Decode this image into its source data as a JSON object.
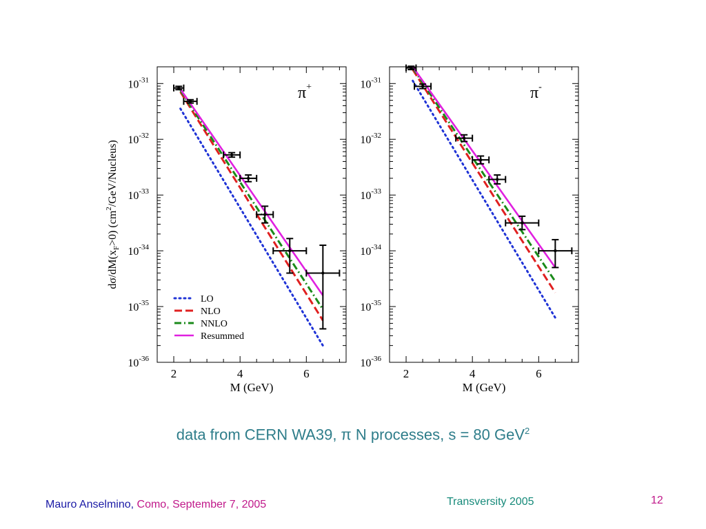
{
  "caption": {
    "text": "data from CERN WA39, π N processes, s = 80 GeV",
    "sup": "2"
  },
  "footer": {
    "author": "Mauro Anselmino,",
    "place": " Como, September 7, 2005",
    "center": "Transversity 2005",
    "page": "12"
  },
  "colors": {
    "LO": "#1f33d6",
    "NLO": "#e02020",
    "NNLO": "#1a8a1a",
    "Resummed": "#e020e0",
    "data": "#000000",
    "caption": "#2e7d8a"
  },
  "chart_data": [
    {
      "type": "line",
      "panel_label": "π",
      "panel_label_sup": "+",
      "ylabel": "dσ/dM(x",
      "ylabel_sub": "F",
      "ylabel_mid": ">0) (cm",
      "ylabel_sup": "2",
      "ylabel_end": "/GeV/Nucleus)",
      "xlabel": "M (GeV)",
      "xlim": [
        1.5,
        7.2
      ],
      "ylim_log10": [
        -36,
        -30.7
      ],
      "log_y": true,
      "x_ticks": [
        2,
        4,
        6
      ],
      "x_tick_labels": [
        "2",
        "4",
        "6"
      ],
      "y_ticks_log10": [
        -31,
        -32,
        -33,
        -34,
        -35,
        -36
      ],
      "y_tick_base": "10",
      "y_tick_exponents": [
        "-31",
        "-32",
        "-33",
        "-34",
        "-35",
        "-36"
      ],
      "legend_position": "bottom-left",
      "legend": [
        "LO",
        "NLO",
        "NNLO",
        "Resummed"
      ],
      "series": [
        {
          "name": "LO",
          "style": "dotted",
          "x": [
            2.2,
            6.5
          ],
          "log10y": [
            -31.45,
            -35.7
          ]
        },
        {
          "name": "NLO",
          "style": "dashed",
          "x": [
            2.2,
            6.5
          ],
          "log10y": [
            -31.15,
            -35.25
          ]
        },
        {
          "name": "NNLO",
          "style": "dashdot",
          "x": [
            2.2,
            6.5
          ],
          "log10y": [
            -31.12,
            -35.05
          ]
        },
        {
          "name": "Resummed",
          "style": "solid",
          "x": [
            2.2,
            6.5
          ],
          "log10y": [
            -31.1,
            -34.8
          ]
        }
      ],
      "points": [
        {
          "x": 2.15,
          "log10y": -31.08,
          "xerr": 0.15,
          "yerr": [
            0.03,
            0.03
          ]
        },
        {
          "x": 2.5,
          "log10y": -31.32,
          "xerr": 0.2,
          "yerr": [
            0.03,
            0.03
          ]
        },
        {
          "x": 3.75,
          "log10y": -32.28,
          "xerr": 0.25,
          "yerr": [
            0.04,
            0.04
          ]
        },
        {
          "x": 4.25,
          "log10y": -32.7,
          "xerr": 0.25,
          "yerr": [
            0.06,
            0.06
          ]
        },
        {
          "x": 4.75,
          "log10y": -33.35,
          "xerr": 0.25,
          "yerr": [
            0.15,
            0.15
          ]
        },
        {
          "x": 5.5,
          "log10y": -34.0,
          "xerr": 0.5,
          "yerr": [
            0.22,
            0.4
          ]
        },
        {
          "x": 6.5,
          "log10y": -34.4,
          "xerr": 0.5,
          "yerr": [
            0.5,
            1.0
          ]
        }
      ]
    },
    {
      "type": "line",
      "panel_label": "π",
      "panel_label_sup": "-",
      "ylabel": "",
      "xlabel": "M (GeV)",
      "xlim": [
        1.5,
        7.2
      ],
      "ylim_log10": [
        -36,
        -30.7
      ],
      "log_y": true,
      "x_ticks": [
        2,
        4,
        6
      ],
      "x_tick_labels": [
        "2",
        "4",
        "6"
      ],
      "y_ticks_log10": [
        -31,
        -32,
        -33,
        -34,
        -35,
        -36
      ],
      "y_tick_base": "10",
      "y_tick_exponents": [
        "-31",
        "-32",
        "-33",
        "-34",
        "-35",
        "-36"
      ],
      "series": [
        {
          "name": "LO",
          "style": "dotted",
          "x": [
            2.2,
            6.5
          ],
          "log10y": [
            -30.95,
            -35.2
          ]
        },
        {
          "name": "NLO",
          "style": "dashed",
          "x": [
            2.2,
            6.5
          ],
          "log10y": [
            -30.75,
            -34.75
          ]
        },
        {
          "name": "NNLO",
          "style": "dashdot",
          "x": [
            2.2,
            6.5
          ],
          "log10y": [
            -30.72,
            -34.55
          ]
        },
        {
          "name": "Resummed",
          "style": "solid",
          "x": [
            2.2,
            6.5
          ],
          "log10y": [
            -30.7,
            -34.3
          ]
        }
      ],
      "points": [
        {
          "x": 2.15,
          "log10y": -30.72,
          "xerr": 0.15,
          "yerr": [
            0.03,
            0.03
          ]
        },
        {
          "x": 2.5,
          "log10y": -31.05,
          "xerr": 0.25,
          "yerr": [
            0.04,
            0.04
          ]
        },
        {
          "x": 3.75,
          "log10y": -31.98,
          "xerr": 0.25,
          "yerr": [
            0.06,
            0.06
          ]
        },
        {
          "x": 4.25,
          "log10y": -32.37,
          "xerr": 0.25,
          "yerr": [
            0.07,
            0.07
          ]
        },
        {
          "x": 4.75,
          "log10y": -32.72,
          "xerr": 0.25,
          "yerr": [
            0.08,
            0.08
          ]
        },
        {
          "x": 5.5,
          "log10y": -33.5,
          "xerr": 0.5,
          "yerr": [
            0.12,
            0.12
          ]
        },
        {
          "x": 6.5,
          "log10y": -34.0,
          "xerr": 0.5,
          "yerr": [
            0.2,
            0.3
          ]
        }
      ]
    }
  ]
}
